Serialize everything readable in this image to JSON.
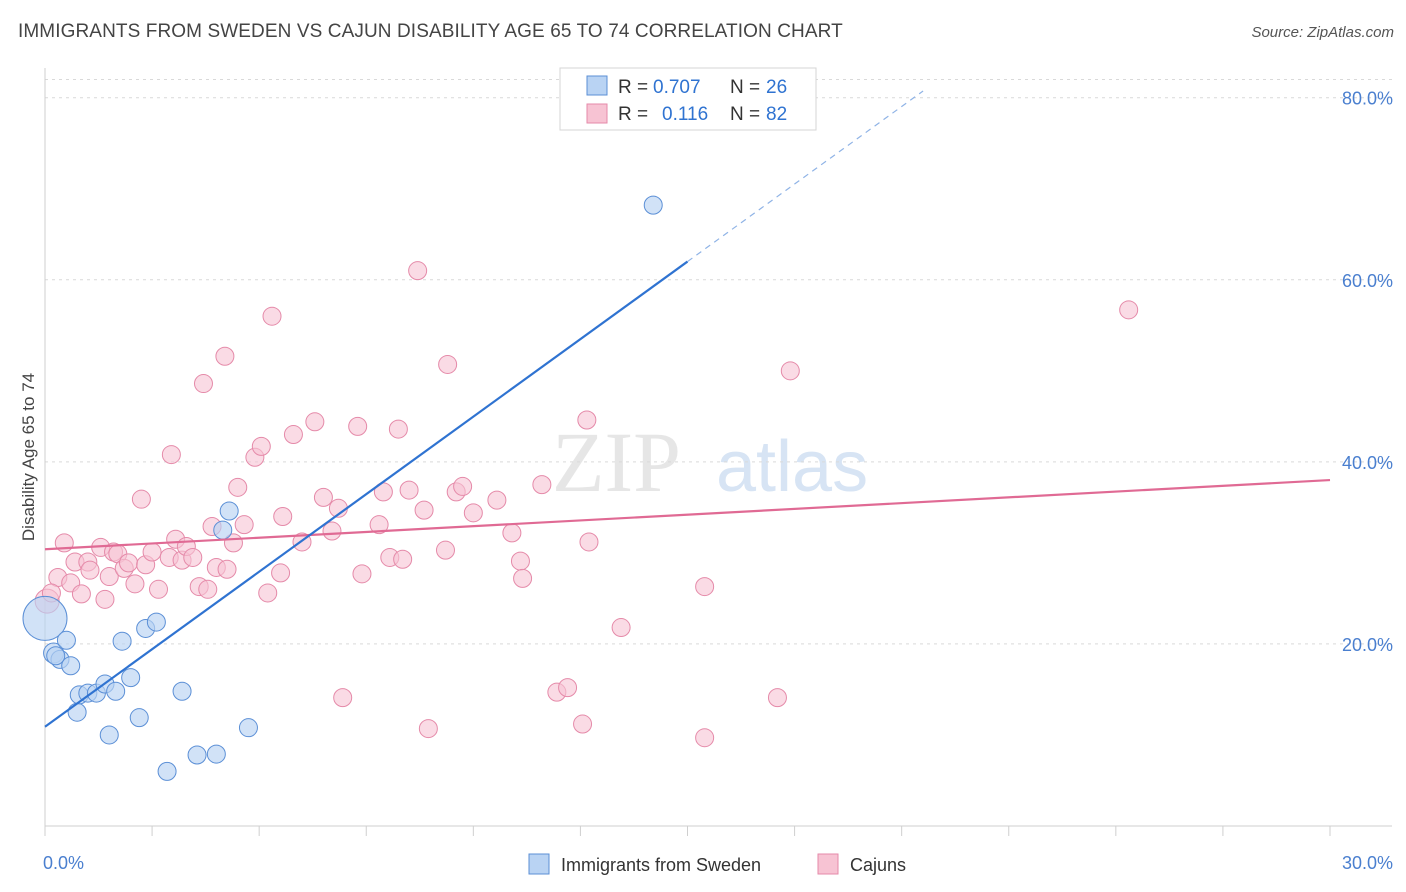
{
  "header": {
    "title": "IMMIGRANTS FROM SWEDEN VS CAJUN DISABILITY AGE 65 TO 74 CORRELATION CHART",
    "source": "Source: ZipAtlas.com"
  },
  "watermark": {
    "zip": "ZIP",
    "atlas": "atlas"
  },
  "colors": {
    "sweden_fill": "#b9d3f3",
    "sweden_stroke": "#5b8fd6",
    "sweden_line": "#2f73d1",
    "cajun_fill": "#f7c3d3",
    "cajun_stroke": "#e58aa9",
    "cajun_line": "#e06a94",
    "grid": "#d9d9d9",
    "tick_label": "#4a7fcf"
  },
  "legend": {
    "rows": [
      {
        "r_label": "R =",
        "r_value": "0.707",
        "n_label": "N =",
        "n_value": "26"
      },
      {
        "r_label": "R =",
        "r_value": "0.116",
        "n_label": "N =",
        "n_value": "82"
      }
    ]
  },
  "bottom_legend": {
    "items": [
      "Immigrants from Sweden",
      "Cajuns"
    ]
  },
  "chart_data": {
    "type": "scatter",
    "title": "IMMIGRANTS FROM SWEDEN VS CAJUN DISABILITY AGE 65 TO 74 CORRELATION CHART",
    "xlabel": "",
    "ylabel": "Disability Age 65 to 74",
    "xlim": [
      0,
      30
    ],
    "ylim": [
      0,
      82
    ],
    "x_tick_labels": [
      "0.0%",
      "30.0%"
    ],
    "y_ticks": [
      20,
      40,
      60,
      80
    ],
    "y_tick_labels": [
      "20.0%",
      "40.0%",
      "60.0%",
      "80.0%"
    ],
    "grid": true,
    "series": [
      {
        "name": "Immigrants from Sweden",
        "R": 0.707,
        "N": 26,
        "trend": {
          "x0": 0,
          "y0": 10.9,
          "x1": 15,
          "y1": 62.0,
          "dash_to_x": 20.5
        },
        "points": [
          [
            0.0,
            22.8,
            22
          ],
          [
            0.2,
            19.0,
            10
          ],
          [
            0.35,
            18.3,
            9
          ],
          [
            0.5,
            20.4,
            9
          ],
          [
            0.6,
            17.6,
            9
          ],
          [
            0.75,
            12.5,
            9
          ],
          [
            0.8,
            14.4,
            9
          ],
          [
            1.0,
            14.6,
            9
          ],
          [
            1.2,
            14.6,
            9
          ],
          [
            1.4,
            15.6,
            9
          ],
          [
            1.5,
            10.0,
            9
          ],
          [
            1.65,
            14.8,
            9
          ],
          [
            1.8,
            20.3,
            9
          ],
          [
            2.0,
            16.3,
            9
          ],
          [
            2.2,
            11.9,
            9
          ],
          [
            2.35,
            21.7,
            9
          ],
          [
            2.6,
            22.4,
            9
          ],
          [
            2.85,
            6.0,
            9
          ],
          [
            3.2,
            14.8,
            9
          ],
          [
            3.55,
            7.8,
            9
          ],
          [
            4.0,
            7.9,
            9
          ],
          [
            4.15,
            32.5,
            9
          ],
          [
            4.3,
            34.6,
            9
          ],
          [
            4.75,
            10.8,
            9
          ],
          [
            14.2,
            68.2,
            9
          ],
          [
            0.25,
            18.7,
            9
          ]
        ]
      },
      {
        "name": "Cajuns",
        "R": 0.116,
        "N": 82,
        "trend": {
          "x0": 0,
          "y0": 30.4,
          "x1": 30,
          "y1": 38.0
        },
        "points": [
          [
            0.05,
            24.7,
            12
          ],
          [
            0.3,
            27.3,
            9
          ],
          [
            0.45,
            31.1,
            9
          ],
          [
            0.6,
            26.7,
            9
          ],
          [
            0.7,
            29.0,
            9
          ],
          [
            0.85,
            25.5,
            9
          ],
          [
            1.0,
            29.0,
            9
          ],
          [
            1.05,
            28.1,
            9
          ],
          [
            1.3,
            30.6,
            9
          ],
          [
            1.4,
            24.9,
            9
          ],
          [
            1.5,
            27.4,
            9
          ],
          [
            1.6,
            30.1,
            9
          ],
          [
            1.7,
            29.9,
            9
          ],
          [
            1.85,
            28.3,
            9
          ],
          [
            1.95,
            28.9,
            9
          ],
          [
            2.1,
            26.6,
            9
          ],
          [
            2.25,
            35.9,
            9
          ],
          [
            2.35,
            28.7,
            9
          ],
          [
            2.5,
            30.1,
            9
          ],
          [
            2.65,
            26.0,
            9
          ],
          [
            2.9,
            29.5,
            9
          ],
          [
            2.95,
            40.8,
            9
          ],
          [
            3.05,
            31.5,
            9
          ],
          [
            3.2,
            29.2,
            9
          ],
          [
            3.3,
            30.7,
            9
          ],
          [
            3.45,
            29.5,
            9
          ],
          [
            3.6,
            26.3,
            9
          ],
          [
            3.7,
            48.6,
            9
          ],
          [
            3.8,
            26.0,
            9
          ],
          [
            3.9,
            32.9,
            9
          ],
          [
            4.0,
            28.4,
            9
          ],
          [
            4.2,
            51.6,
            9
          ],
          [
            4.25,
            28.2,
            9
          ],
          [
            4.4,
            31.1,
            9
          ],
          [
            4.5,
            37.2,
            9
          ],
          [
            4.65,
            33.1,
            9
          ],
          [
            4.9,
            40.5,
            9
          ],
          [
            5.05,
            41.7,
            9
          ],
          [
            5.2,
            25.6,
            9
          ],
          [
            5.3,
            56.0,
            9
          ],
          [
            5.5,
            27.8,
            9
          ],
          [
            5.55,
            34.0,
            9
          ],
          [
            5.8,
            43.0,
            9
          ],
          [
            6.0,
            31.2,
            9
          ],
          [
            6.3,
            44.4,
            9
          ],
          [
            6.5,
            36.1,
            9
          ],
          [
            6.7,
            32.4,
            9
          ],
          [
            6.85,
            34.9,
            9
          ],
          [
            6.95,
            14.1,
            9
          ],
          [
            7.3,
            43.9,
            9
          ],
          [
            7.4,
            27.7,
            9
          ],
          [
            7.8,
            33.1,
            9
          ],
          [
            7.9,
            36.7,
            9
          ],
          [
            8.05,
            29.5,
            9
          ],
          [
            8.25,
            43.6,
            9
          ],
          [
            8.35,
            29.3,
            9
          ],
          [
            8.5,
            36.9,
            9
          ],
          [
            8.7,
            61.0,
            9
          ],
          [
            8.85,
            34.7,
            9
          ],
          [
            8.95,
            10.7,
            9
          ],
          [
            9.35,
            30.3,
            9
          ],
          [
            9.4,
            50.7,
            9
          ],
          [
            9.6,
            36.7,
            9
          ],
          [
            9.75,
            37.3,
            9
          ],
          [
            10.0,
            34.4,
            9
          ],
          [
            10.55,
            35.8,
            9
          ],
          [
            10.9,
            32.2,
            9
          ],
          [
            11.1,
            29.1,
            9
          ],
          [
            11.15,
            27.2,
            9
          ],
          [
            11.6,
            37.5,
            9
          ],
          [
            11.95,
            14.7,
            9
          ],
          [
            12.2,
            15.2,
            9
          ],
          [
            12.55,
            11.2,
            9
          ],
          [
            12.7,
            31.2,
            9
          ],
          [
            12.65,
            44.6,
            9
          ],
          [
            13.45,
            21.8,
            9
          ],
          [
            15.4,
            26.3,
            9
          ],
          [
            15.4,
            9.7,
            9
          ],
          [
            17.1,
            14.1,
            9
          ],
          [
            17.4,
            50.0,
            9
          ],
          [
            25.3,
            56.7,
            9
          ],
          [
            0.15,
            25.6,
            9
          ]
        ]
      }
    ]
  }
}
